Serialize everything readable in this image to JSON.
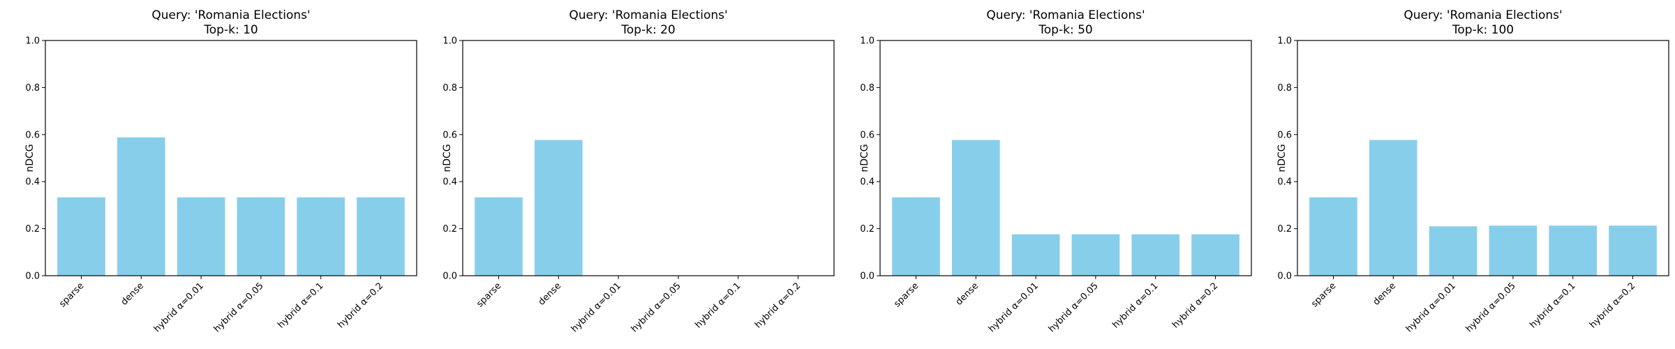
{
  "chart_data": [
    {
      "type": "bar",
      "title": "Query: 'Romania Elections'",
      "subtitle": "Top-k: 10",
      "xlabel": "",
      "ylabel": "nDCG",
      "ylim": [
        0,
        1.0
      ],
      "yticks": [
        "0.0",
        "0.2",
        "0.4",
        "0.6",
        "0.8",
        "1.0"
      ],
      "categories": [
        "sparse",
        "dense",
        "hybrid α=0.01",
        "hybrid α=0.05",
        "hybrid α=0.1",
        "hybrid α=0.2"
      ],
      "values": [
        0.333,
        0.588,
        0.333,
        0.333,
        0.333,
        0.333
      ],
      "bar_color": "#87CEEB"
    },
    {
      "type": "bar",
      "title": "Query: 'Romania Elections'",
      "subtitle": "Top-k: 20",
      "xlabel": "",
      "ylabel": "nDCG",
      "ylim": [
        0,
        1.0
      ],
      "yticks": [
        "0.0",
        "0.2",
        "0.4",
        "0.6",
        "0.8",
        "1.0"
      ],
      "categories": [
        "sparse",
        "dense",
        "hybrid α=0.01",
        "hybrid α=0.05",
        "hybrid α=0.1",
        "hybrid α=0.2"
      ],
      "values": [
        0.333,
        0.577,
        0.0,
        0.0,
        0.0,
        0.0
      ],
      "bar_color": "#87CEEB"
    },
    {
      "type": "bar",
      "title": "Query: 'Romania Elections'",
      "subtitle": "Top-k: 50",
      "xlabel": "",
      "ylabel": "nDCG",
      "ylim": [
        0,
        1.0
      ],
      "yticks": [
        "0.0",
        "0.2",
        "0.4",
        "0.6",
        "0.8",
        "1.0"
      ],
      "categories": [
        "sparse",
        "dense",
        "hybrid α=0.01",
        "hybrid α=0.05",
        "hybrid α=0.1",
        "hybrid α=0.2"
      ],
      "values": [
        0.333,
        0.577,
        0.176,
        0.176,
        0.176,
        0.176
      ],
      "bar_color": "#87CEEB"
    },
    {
      "type": "bar",
      "title": "Query: 'Romania Elections'",
      "subtitle": "Top-k: 100",
      "xlabel": "",
      "ylabel": "nDCG",
      "ylim": [
        0,
        1.0
      ],
      "yticks": [
        "0.0",
        "0.2",
        "0.4",
        "0.6",
        "0.8",
        "1.0"
      ],
      "categories": [
        "sparse",
        "dense",
        "hybrid α=0.01",
        "hybrid α=0.05",
        "hybrid α=0.1",
        "hybrid α=0.2"
      ],
      "values": [
        0.333,
        0.577,
        0.21,
        0.213,
        0.213,
        0.213
      ],
      "bar_color": "#87CEEB"
    }
  ]
}
